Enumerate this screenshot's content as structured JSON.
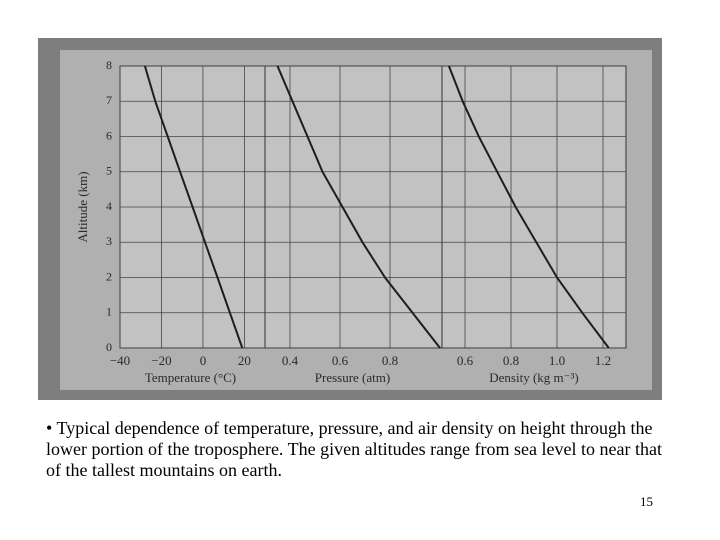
{
  "chart_data": [
    {
      "type": "line",
      "ylabel": "Altitude (km)",
      "xlabel": "Temperature (°C)",
      "x": [
        19,
        13,
        7,
        1,
        -5,
        -11,
        -17,
        -23,
        -28
      ],
      "y": [
        0,
        1,
        2,
        3,
        4,
        5,
        6,
        7,
        8
      ],
      "xlim": [
        -40,
        28
      ],
      "ylim": [
        0,
        8
      ],
      "xticks": [
        {
          "value": -40,
          "label": "−40"
        },
        {
          "value": -20,
          "label": "−20"
        },
        0,
        20
      ],
      "yticks": [
        0,
        1,
        2,
        3,
        4,
        5,
        6,
        7,
        8
      ],
      "grid": true,
      "color": "#1e1e1e"
    },
    {
      "type": "line",
      "xlabel": "Pressure (atm)",
      "x": [
        1.0,
        0.89,
        0.78,
        0.69,
        0.61,
        0.53,
        0.47,
        0.41,
        0.35
      ],
      "y": [
        0,
        1,
        2,
        3,
        4,
        5,
        6,
        7,
        8
      ],
      "xlim": [
        0.3,
        1.0
      ],
      "ylim": [
        0,
        8
      ],
      "xticks": [
        0.4,
        0.6,
        0.8
      ],
      "grid": true,
      "color": "#1e1e1e"
    },
    {
      "type": "line",
      "xlabel": "Density (kg m⁻³)",
      "x": [
        1.225,
        1.11,
        1.0,
        0.91,
        0.82,
        0.74,
        0.66,
        0.59,
        0.53
      ],
      "y": [
        0,
        1,
        2,
        3,
        4,
        5,
        6,
        7,
        8
      ],
      "xlim": [
        0.5,
        1.3
      ],
      "ylim": [
        0,
        8
      ],
      "xticks": [
        0.6,
        0.8,
        {
          "value": 1.0,
          "label": "1.0"
        },
        1.2
      ],
      "grid": true,
      "color": "#1e1e1e"
    }
  ],
  "caption": "• Typical dependence of temperature, pressure, and air density on height through the lower portion of the troposphere. The given altitudes range from sea level to near that of the tallest mountains on earth.",
  "page_number": "15"
}
